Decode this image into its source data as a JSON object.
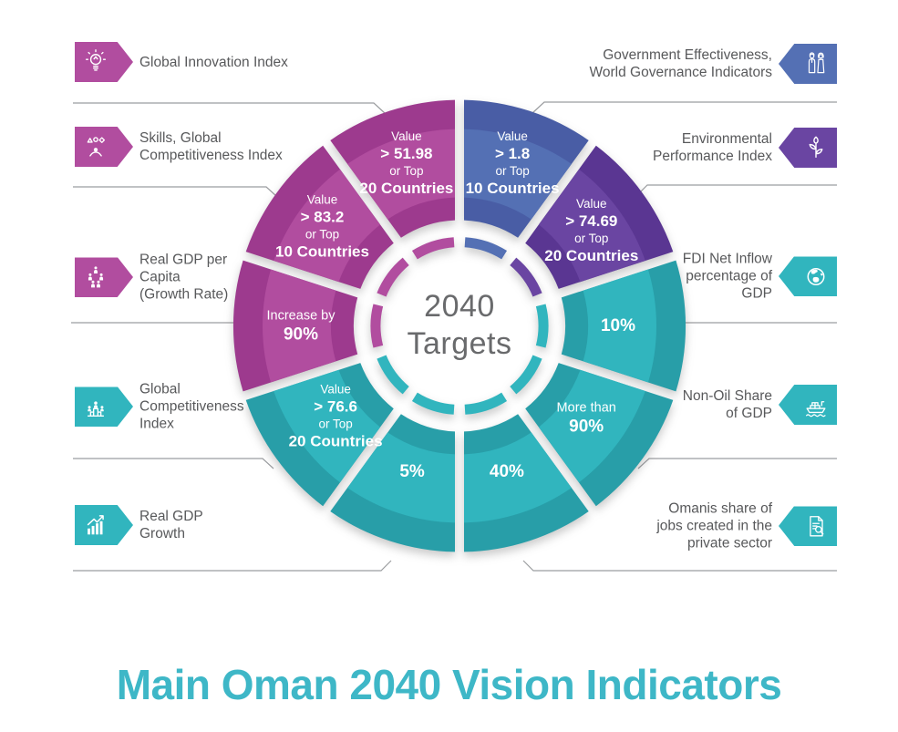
{
  "title": "Main Oman 2040 Vision Indicators",
  "center": {
    "line1": "2040",
    "line2": "Targets"
  },
  "colors": {
    "magenta": {
      "main": "#B14D9F",
      "dark": "#9D3A8E"
    },
    "blue": {
      "main": "#5470B4",
      "dark": "#495DA5"
    },
    "purple": {
      "main": "#6A45A2",
      "dark": "#5A3692"
    },
    "teal": {
      "main": "#31B5BE",
      "dark": "#289EA8"
    },
    "title_text": "#3EB7C7",
    "label_text": "#58595B",
    "center_text": "#696A6C",
    "connector": "#9B9DA0",
    "segment_text": "#FFFFFF"
  },
  "left_labels": [
    {
      "lines": [
        "Global Innovation Index"
      ],
      "icon": "lightbulb-icon",
      "color": "magenta"
    },
    {
      "lines": [
        "Skills, Global",
        "Competitiveness Index"
      ],
      "icon": "juggling-shapes-icon",
      "color": "magenta"
    },
    {
      "lines": [
        "Real GDP per",
        "Capita",
        "(Growth Rate)"
      ],
      "icon": "population-icon",
      "color": "magenta"
    },
    {
      "lines": [
        "Global",
        "Competitiveness",
        "Index"
      ],
      "icon": "podium-people-icon",
      "color": "teal"
    },
    {
      "lines": [
        "Real GDP",
        "Growth"
      ],
      "icon": "growth-chart-icon",
      "color": "teal"
    }
  ],
  "right_labels": [
    {
      "lines": [
        "Government Effectiveness,",
        "World Governance Indicators"
      ],
      "icon": "omani-figures-icon",
      "color": "blue"
    },
    {
      "lines": [
        "Environmental",
        "Performance Index"
      ],
      "icon": "plant-icon",
      "color": "purple"
    },
    {
      "lines": [
        "FDI Net Inflow",
        "percentage of",
        "GDP"
      ],
      "icon": "globe-icon",
      "color": "teal"
    },
    {
      "lines": [
        "Non-Oil Share",
        "of GDP"
      ],
      "icon": "cargo-ship-icon",
      "color": "teal"
    },
    {
      "lines": [
        "Omanis share of",
        "jobs created in the",
        "private sector"
      ],
      "icon": "document-search-icon",
      "color": "teal"
    }
  ],
  "chart_data": {
    "type": "pie",
    "subtype": "donut, 10 equal segments of 36 degrees, clockwise from top",
    "center_label": "2040 Targets",
    "legend_position": "labels around wheel",
    "segments": [
      {
        "indicator": "Government Effectiveness, World Governance Indicators",
        "target": "Value > 1.8 or Top 10 Countries",
        "color": "blue",
        "label_lines": [
          {
            "text": "Value",
            "style": "sm"
          },
          {
            "text": "> 1.8",
            "style": "lg"
          },
          {
            "text": "or Top",
            "style": "sm"
          },
          {
            "text": "10 Countries",
            "style": "lg"
          }
        ]
      },
      {
        "indicator": "Environmental Performance Index",
        "target": "Value > 74.69 or Top 20 Countries",
        "color": "purple",
        "label_lines": [
          {
            "text": "Value",
            "style": "sm"
          },
          {
            "text": "> 74.69",
            "style": "lg"
          },
          {
            "text": "or Top",
            "style": "sm"
          },
          {
            "text": "20 Countries",
            "style": "lg"
          }
        ]
      },
      {
        "indicator": "FDI Net Inflow percentage of GDP",
        "target": "10%",
        "color": "teal",
        "label_lines": [
          {
            "text": "10%",
            "style": "xl"
          }
        ]
      },
      {
        "indicator": "Non-Oil Share of GDP",
        "target": "More than 90%",
        "color": "teal",
        "label_lines": [
          {
            "text": "More than",
            "style": "md"
          },
          {
            "text": "90%",
            "style": "xl"
          }
        ]
      },
      {
        "indicator": "Omanis share of jobs created in the private sector",
        "target": "40%",
        "color": "teal",
        "label_lines": [
          {
            "text": "40%",
            "style": "xl"
          }
        ]
      },
      {
        "indicator": "Real GDP Growth",
        "target": "5%",
        "color": "teal",
        "label_lines": [
          {
            "text": "5%",
            "style": "xl"
          }
        ]
      },
      {
        "indicator": "Global Competitiveness Index",
        "target": "Value > 76.6 or Top 20 Countries",
        "color": "teal",
        "label_lines": [
          {
            "text": "Value",
            "style": "sm"
          },
          {
            "text": "> 76.6",
            "style": "lg"
          },
          {
            "text": "or Top",
            "style": "sm"
          },
          {
            "text": "20 Countries",
            "style": "lg"
          }
        ]
      },
      {
        "indicator": "Real GDP per Capita (Growth Rate)",
        "target": "Increase by 90%",
        "color": "magenta",
        "label_lines": [
          {
            "text": "Increase by",
            "style": "md"
          },
          {
            "text": "90%",
            "style": "xl"
          }
        ]
      },
      {
        "indicator": "Skills, Global Competitiveness Index",
        "target": "Value > 83.2 or Top 10 Countries",
        "color": "magenta",
        "label_lines": [
          {
            "text": "Value",
            "style": "sm"
          },
          {
            "text": "> 83.2",
            "style": "lg"
          },
          {
            "text": "or Top",
            "style": "sm"
          },
          {
            "text": "10 Countries",
            "style": "lg"
          }
        ]
      },
      {
        "indicator": "Global Innovation Index",
        "target": "Value > 51.98 or Top 20 Countries",
        "color": "magenta",
        "label_lines": [
          {
            "text": "Value",
            "style": "sm"
          },
          {
            "text": "> 51.98",
            "style": "lg"
          },
          {
            "text": "or Top",
            "style": "sm"
          },
          {
            "text": "20 Countries",
            "style": "lg"
          }
        ]
      }
    ]
  }
}
